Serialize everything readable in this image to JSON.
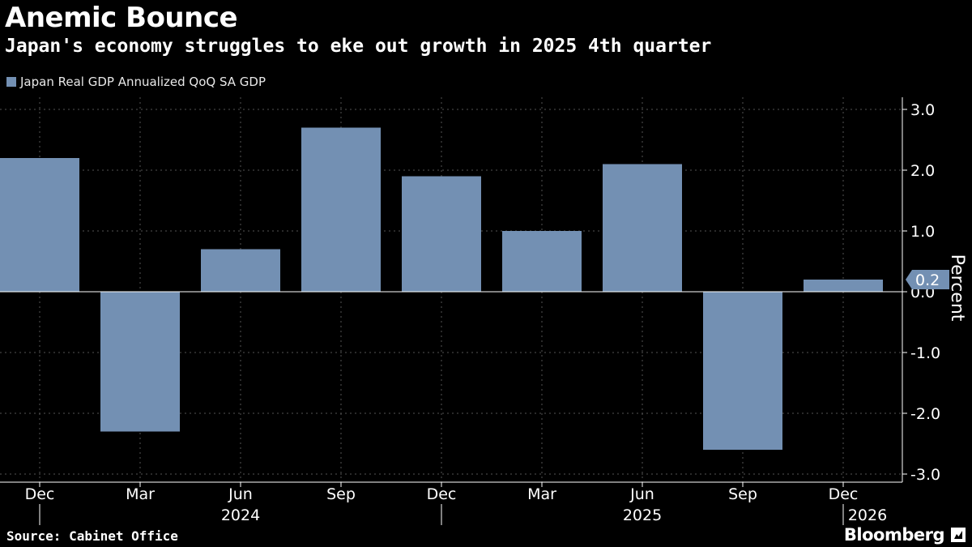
{
  "header": {
    "title": "Anemic Bounce",
    "subtitle": "Japan's economy struggles to eke out growth in 2025 4th quarter"
  },
  "footer": {
    "source": "Source: Cabinet Office",
    "brand": "Bloomberg"
  },
  "colors": {
    "background": "#000000",
    "bar": "#7390b3",
    "text": "#ffffff",
    "gridline": "#555555"
  },
  "chart_data": {
    "type": "bar",
    "title": "Anemic Bounce",
    "subtitle": "Japan's economy struggles to eke out growth in 2025 4th quarter",
    "ylabel": "Percent",
    "ylim": [
      -3.0,
      3.0
    ],
    "yticks": [
      "3.0",
      "2.0",
      "1.0",
      "0.0",
      "-1.0",
      "-2.0",
      "-3.0"
    ],
    "grid": true,
    "y_axis_side": "right",
    "legend_placement": "top-left",
    "categories": [
      "Dec",
      "Mar",
      "Jun",
      "Sep",
      "Dec",
      "Mar",
      "Jun",
      "Sep",
      "Dec"
    ],
    "year_labels": [
      {
        "label": "2024",
        "under_category": 2
      },
      {
        "label": "2025",
        "under_category": 6
      },
      {
        "label": "2026",
        "under_category": 8
      }
    ],
    "series": [
      {
        "name": "Japan Real GDP Annualized QoQ SA GDP",
        "values": [
          2.2,
          -2.3,
          0.7,
          2.7,
          1.9,
          1.0,
          2.1,
          -2.6,
          0.2
        ]
      }
    ],
    "last_value_label": "0.2"
  }
}
